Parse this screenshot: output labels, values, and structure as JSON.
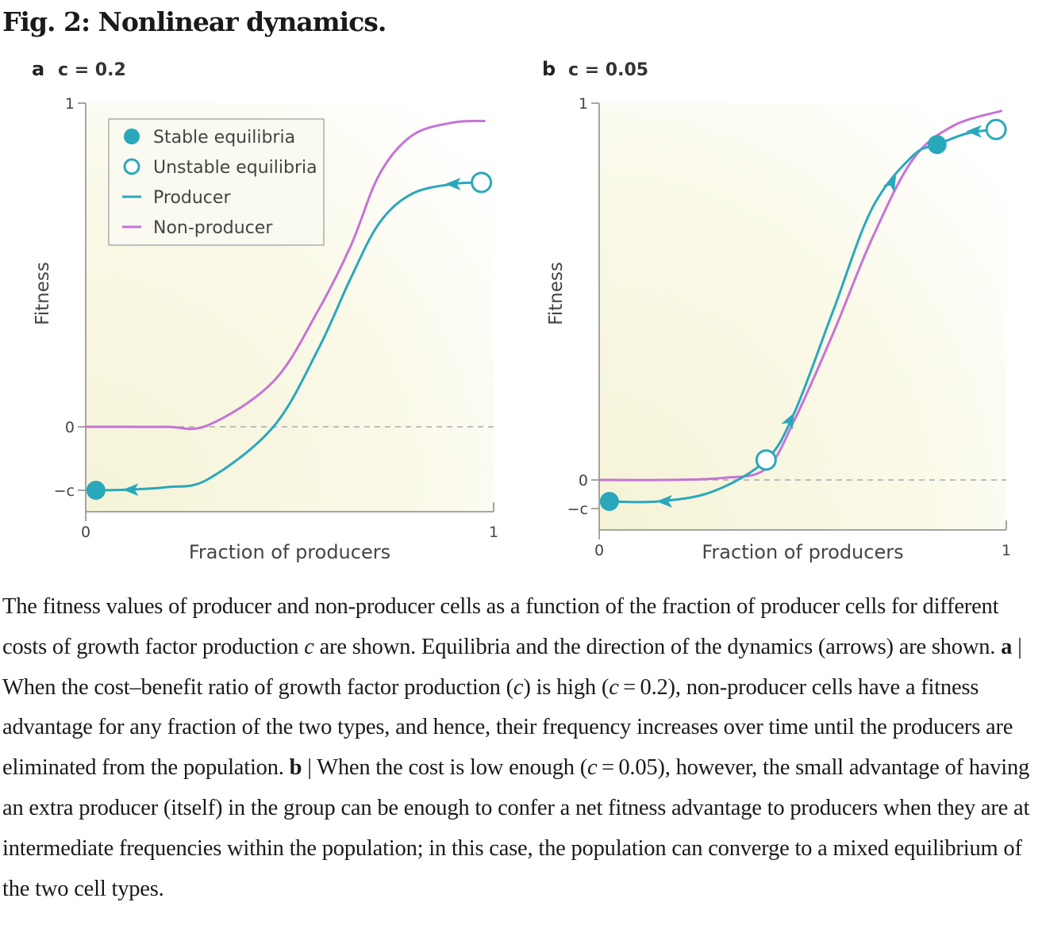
{
  "title": "Fig. 2: Nonlinear dynamics.",
  "legend": {
    "stable": "Stable equilibria",
    "unstable": "Unstable equilibria",
    "producer": "Producer",
    "nonproducer": "Non-producer"
  },
  "colors": {
    "producer": "#2aa8bb",
    "nonproducer": "#c673d6",
    "axis": "#888888"
  },
  "chart_data": [
    {
      "type": "line",
      "panel": "a",
      "title": "c = 0.2",
      "xlabel": "Fraction of producers",
      "ylabel": "Fitness",
      "xticks": [
        "0",
        "1"
      ],
      "yticks": [
        {
          "value": 1,
          "label": "1"
        },
        {
          "value": 0,
          "label": "0"
        },
        {
          "value": -0.2,
          "label": "−c"
        }
      ],
      "xlim": [
        0,
        1
      ],
      "ylim": [
        -0.2,
        1
      ],
      "legend_position": "top-left",
      "series": [
        {
          "name": "Non-producer",
          "x": [
            0,
            0.1,
            0.2,
            0.3,
            0.46,
            0.57,
            0.65,
            0.72,
            0.8,
            0.9,
            0.98
          ],
          "y": [
            0,
            0,
            0,
            0.005,
            0.14,
            0.36,
            0.56,
            0.78,
            0.9,
            0.94,
            0.945
          ]
        },
        {
          "name": "Producer",
          "x": [
            0.025,
            0.1,
            0.2,
            0.3,
            0.46,
            0.57,
            0.65,
            0.72,
            0.8,
            0.9,
            0.97
          ],
          "y": [
            -0.2,
            -0.198,
            -0.19,
            -0.165,
            0,
            0.24,
            0.46,
            0.63,
            0.72,
            0.75,
            0.755
          ]
        }
      ],
      "stable_equilibria": [
        {
          "x": 0.025,
          "y": -0.2
        }
      ],
      "unstable_equilibria": [
        {
          "x": 0.97,
          "y": 0.755
        }
      ],
      "arrows": [
        {
          "x": 0.11,
          "y": -0.198,
          "direction": "left"
        },
        {
          "x": 0.9,
          "y": 0.75,
          "direction": "left"
        }
      ]
    },
    {
      "type": "line",
      "panel": "b",
      "title": "c = 0.05",
      "xlabel": "Fraction of producers",
      "ylabel": "Fitness",
      "xticks": [
        "0",
        "1"
      ],
      "yticks": [
        {
          "value": 1,
          "label": "1"
        },
        {
          "value": 0,
          "label": "0"
        },
        {
          "value": -0.05,
          "label": "−c"
        }
      ],
      "xlim": [
        0,
        1
      ],
      "ylim": [
        -0.05,
        1
      ],
      "series": [
        {
          "name": "Non-producer",
          "x": [
            0,
            0.15,
            0.3,
            0.41,
            0.48,
            0.575,
            0.67,
            0.77,
            0.87,
            0.99
          ],
          "y": [
            0,
            0,
            0.005,
            0.03,
            0.16,
            0.39,
            0.64,
            0.85,
            0.94,
            0.98
          ]
        },
        {
          "name": "Producer",
          "x": [
            0.025,
            0.146,
            0.28,
            0.41,
            0.48,
            0.575,
            0.67,
            0.77,
            0.83,
            0.905,
            0.975
          ],
          "y": [
            -0.0375,
            -0.0375,
            -0.02,
            0.053,
            0.18,
            0.45,
            0.72,
            0.86,
            0.89,
            0.92,
            0.93
          ]
        }
      ],
      "stable_equilibria": [
        {
          "x": 0.025,
          "y": -0.0375
        },
        {
          "x": 0.83,
          "y": 0.89
        }
      ],
      "unstable_equilibria": [
        {
          "x": 0.41,
          "y": 0.053
        },
        {
          "x": 0.975,
          "y": 0.93
        }
      ],
      "arrows": [
        {
          "x": 0.16,
          "y": -0.0375,
          "direction": "left"
        },
        {
          "x": 0.47,
          "y": 0.16,
          "direction": "up-right"
        },
        {
          "x": 0.72,
          "y": 0.79,
          "direction": "up-right"
        },
        {
          "x": 0.92,
          "y": 0.925,
          "direction": "left"
        }
      ]
    }
  ],
  "caption": {
    "p1": "The fitness values of producer and non-producer cells as a function of the fraction of producer cells for different costs of growth factor production ",
    "c1": "c",
    "p2": " are shown. Equilibria and the direction of the dynamics (arrows) are shown. ",
    "a": "a",
    "p3": " | When the cost–benefit ratio of growth factor production (",
    "c2": "c",
    "p4": ") is high (",
    "c3": "c",
    "p5": " = 0.2), non-producer cells have a fitness advantage for any fraction of the two types, and hence, their frequency increases over time until the producers are eliminated from the population. ",
    "b": "b",
    "p6": " | When the cost is low enough (",
    "c4": "c",
    "p7": " = 0.05), however, the small advantage of having an extra producer (itself) in the group can be enough to confer a net fitness advantage to producers when they are at intermediate frequencies within the population; in this case, the population can converge to a mixed equilibrium of the two cell types."
  }
}
